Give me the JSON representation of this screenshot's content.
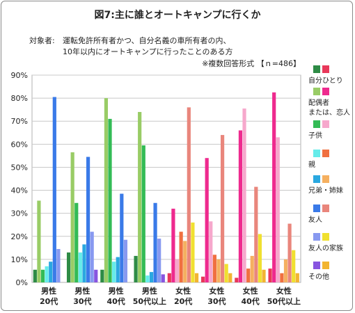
{
  "chart_data": {
    "type": "bar",
    "title": "図7:主に誰とオートキャンプに行くか",
    "subtitle_prefix": "対象者:",
    "subtitle_lines": [
      "運転免許所有者かつ、自分名義の車所有者の内、",
      "10年以内にオートキャンプに行ったことのある方"
    ],
    "note": "※複数回答形式 【ｎ=486】",
    "yticks": [
      "0%",
      "10%",
      "20%",
      "30%",
      "40%",
      "50%",
      "60%",
      "70%",
      "80%",
      "90%"
    ],
    "ylim": [
      0,
      90
    ],
    "groups": [
      {
        "line1": "男性",
        "line2": "20代"
      },
      {
        "line1": "男性",
        "line2": "30代"
      },
      {
        "line1": "男性",
        "line2": "40代"
      },
      {
        "line1": "男性",
        "line2": "50代以上"
      },
      {
        "line1": "女性",
        "line2": "20代"
      },
      {
        "line1": "女性",
        "line2": "30代"
      },
      {
        "line1": "女性",
        "line2": "40代"
      },
      {
        "line1": "女性",
        "line2": "50代以上"
      }
    ],
    "series": [
      {
        "name": "自分ひとり",
        "values": [
          5.5,
          13,
          5.5,
          11.5,
          4,
          2.5,
          2,
          6
        ],
        "male_color": "#2e8b46",
        "female_color": "#e8385a"
      },
      {
        "name": "配偶者 または、恋人",
        "values": [
          35.5,
          56.5,
          80,
          74,
          32,
          54,
          66,
          82.5
        ],
        "male_color": "#99cc66",
        "female_color": "#ee2a8e"
      },
      {
        "name": "子供",
        "values": [
          5.5,
          34.5,
          71,
          59.5,
          10,
          26.5,
          75.5,
          63
        ],
        "male_color": "#33bb55",
        "female_color": "#f6a8cc"
      },
      {
        "name": "親",
        "values": [
          7,
          13,
          9,
          3,
          22,
          12,
          6,
          4
        ],
        "male_color": "#66ecea",
        "female_color": "#f07040"
      },
      {
        "name": "兄弟・姉妹",
        "values": [
          9,
          16.5,
          11,
          4.5,
          18,
          10,
          11.5,
          10
        ],
        "male_color": "#2aa8e0",
        "female_color": "#f5b060"
      },
      {
        "name": "友人",
        "values": [
          80.5,
          54.5,
          38.5,
          34.5,
          76,
          64,
          41.5,
          25.5
        ],
        "male_color": "#3a7ae8",
        "female_color": "#e9867c"
      },
      {
        "name": "友人の家族",
        "values": [
          14.5,
          22,
          18.5,
          19,
          26,
          8,
          21,
          14
        ],
        "male_color": "#8899f0",
        "female_color": "#f0e030"
      },
      {
        "name": "その他",
        "values": [
          0,
          5.5,
          0,
          3.5,
          4,
          4,
          5.5,
          4
        ],
        "male_color": "#8855e0",
        "female_color": "#f2b431"
      }
    ],
    "legend_labels": [
      [
        "自分ひとり"
      ],
      [
        "配偶者",
        "または、恋人"
      ],
      [
        "子供"
      ],
      [
        "親"
      ],
      [
        "兄弟・姉妹"
      ],
      [
        "友人"
      ],
      [
        "友人の家族"
      ],
      [
        "その他"
      ]
    ],
    "legend_position": "right",
    "grid": true
  }
}
